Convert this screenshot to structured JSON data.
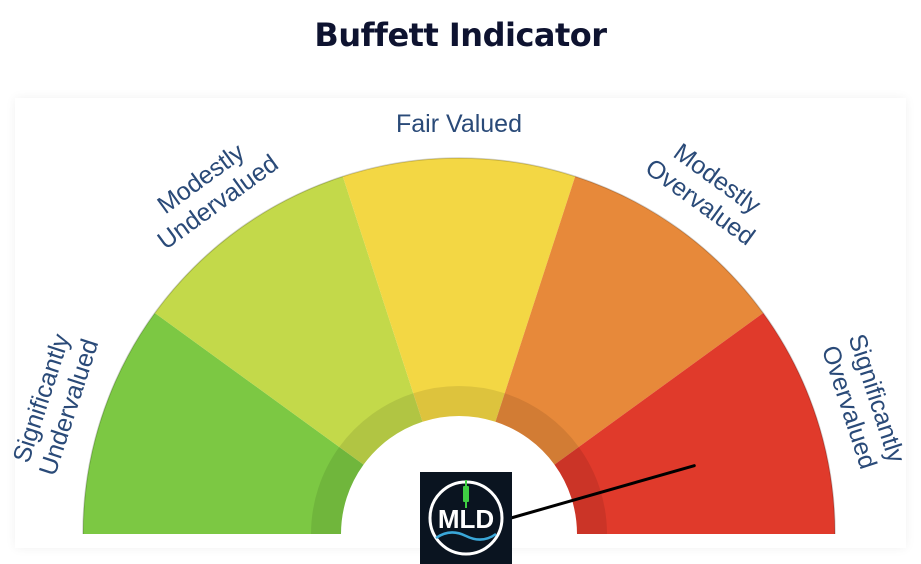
{
  "title": "Buffett Indicator",
  "logo": {
    "text": "MLD",
    "bg_color": "#0a1420",
    "ring_color": "#ffffff",
    "candle_color": "#3fcf43"
  },
  "chart_data": {
    "type": "gauge",
    "title": "Buffett Indicator",
    "zones": [
      {
        "lines": [
          "Significantly",
          "Undervalued"
        ],
        "color": "#7cc843"
      },
      {
        "lines": [
          "Modestly",
          "Undervalued"
        ],
        "color": "#c3d94a"
      },
      {
        "lines": [
          "Fair Valued"
        ],
        "color": "#f3d744"
      },
      {
        "lines": [
          "Modestly",
          "Overvalued"
        ],
        "color": "#e7893a"
      },
      {
        "lines": [
          "Significantly",
          "Overvalued"
        ],
        "color": "#e03a2b"
      }
    ],
    "needle_zone": "Significantly Overvalued",
    "needle_fraction": 0.91,
    "needle_color": "#000000"
  }
}
